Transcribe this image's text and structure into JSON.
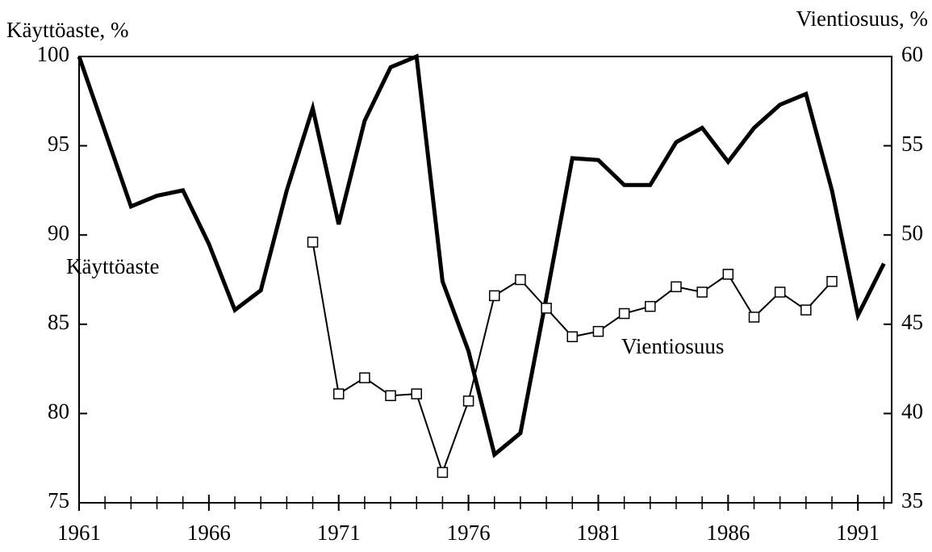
{
  "chart_data": {
    "type": "line",
    "y_label": "Käyttöaste, %",
    "y2_label": "Vientiosuus, %",
    "annotations": [
      "Käyttöaste",
      "Vientiosuus"
    ],
    "x": [
      1961,
      1962,
      1963,
      1964,
      1965,
      1966,
      1967,
      1968,
      1969,
      1970,
      1971,
      1972,
      1973,
      1974,
      1975,
      1976,
      1977,
      1978,
      1979,
      1980,
      1981,
      1982,
      1983,
      1984,
      1985,
      1986,
      1987,
      1988,
      1989,
      1990,
      1991,
      1992
    ],
    "xlim": [
      1961,
      1992.3
    ],
    "xticks": [
      1961,
      1966,
      1971,
      1976,
      1981,
      1986,
      1991
    ],
    "ylim": [
      75,
      100
    ],
    "yticks": [
      75,
      80,
      85,
      90,
      95,
      100
    ],
    "y2lim": [
      35,
      60
    ],
    "y2ticks": [
      35,
      40,
      45,
      50,
      55,
      60
    ],
    "series": [
      {
        "name": "Käyttöaste",
        "color": "#000000",
        "values": [
          100,
          95.8,
          91.6,
          92.2,
          92.5,
          89.5,
          85.8,
          86.9,
          92.5,
          97.1,
          90.6,
          96.4,
          99.4,
          100,
          87.4,
          83.5,
          77.7,
          78.9,
          86.5,
          94.3,
          94.2,
          92.8,
          92.8,
          95.2,
          96.0,
          94.1,
          96.0,
          97.3,
          97.9,
          92.5,
          85.5,
          88.4
        ]
      },
      {
        "name": "Vientiosuus",
        "color": "#000000",
        "axis": "y2",
        "values": [
          null,
          null,
          null,
          null,
          null,
          null,
          null,
          null,
          null,
          49.6,
          41.1,
          42.0,
          41.0,
          41.1,
          36.7,
          40.7,
          46.6,
          47.5,
          45.9,
          44.3,
          44.6,
          45.6,
          46.0,
          47.1,
          46.8,
          47.8,
          45.4,
          46.8,
          45.8,
          47.4,
          null,
          null
        ]
      }
    ]
  }
}
